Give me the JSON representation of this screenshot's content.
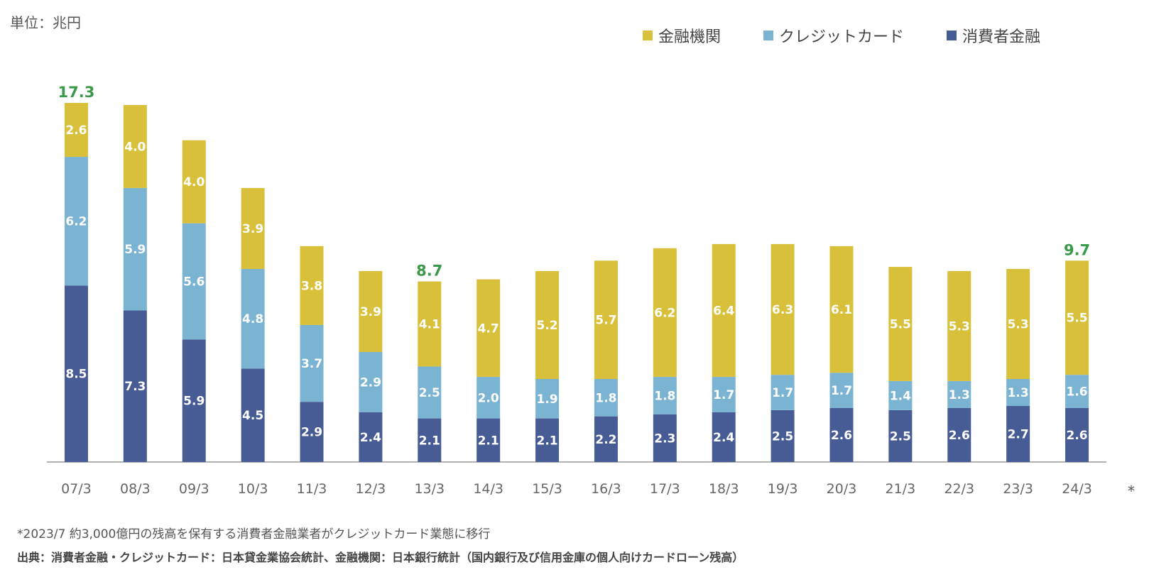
{
  "unit_label": "単位：兆円",
  "footnote": "*2023/7 約3,000億円の残高を保有する消費者金融業者がクレジットカード業態に移行",
  "source": "出典：消費者金融・クレジットカード：日本貸金業協会統計、金融機関：日本銀行統計（国内銀行及び信用金庫の個人向けカードローン残高）",
  "asterisk": "*",
  "colors": {
    "consumer_finance": "#475b95",
    "credit_card": "#7bb3d3",
    "financial_institution": "#d9c03a",
    "total_label": "#3a9a4a",
    "axis": "#999999"
  },
  "chart_data": {
    "type": "bar",
    "stacked": true,
    "categories": [
      "07/3",
      "08/3",
      "09/3",
      "10/3",
      "11/3",
      "12/3",
      "13/3",
      "14/3",
      "15/3",
      "16/3",
      "17/3",
      "18/3",
      "19/3",
      "20/3",
      "21/3",
      "22/3",
      "23/3",
      "24/3"
    ],
    "series": [
      {
        "name": "消費者金融",
        "key": "consumer_finance",
        "values": [
          8.5,
          7.3,
          5.9,
          4.5,
          2.9,
          2.4,
          2.1,
          2.1,
          2.1,
          2.2,
          2.3,
          2.4,
          2.5,
          2.6,
          2.5,
          2.6,
          2.7,
          2.6
        ]
      },
      {
        "name": "クレジットカード",
        "key": "credit_card",
        "values": [
          6.2,
          5.9,
          5.6,
          4.8,
          3.7,
          2.9,
          2.5,
          2.0,
          1.9,
          1.8,
          1.8,
          1.7,
          1.7,
          1.7,
          1.4,
          1.3,
          1.3,
          1.6
        ]
      },
      {
        "name": "金融機関",
        "key": "financial_institution",
        "values": [
          2.6,
          4.0,
          4.0,
          3.9,
          3.8,
          3.9,
          4.1,
          4.7,
          5.2,
          5.7,
          6.2,
          6.4,
          6.3,
          6.1,
          5.5,
          5.3,
          5.3,
          5.5
        ]
      }
    ],
    "totals": [
      {
        "category": "07/3",
        "label": "17.3"
      },
      {
        "category": "13/3",
        "label": "8.7"
      },
      {
        "category": "24/3",
        "label": "9.7"
      }
    ],
    "legend_order": [
      "金融機関",
      "クレジットカード",
      "消費者金融"
    ],
    "legend_position": "top-right",
    "ylim": [
      0,
      17.3
    ],
    "grid": false
  }
}
